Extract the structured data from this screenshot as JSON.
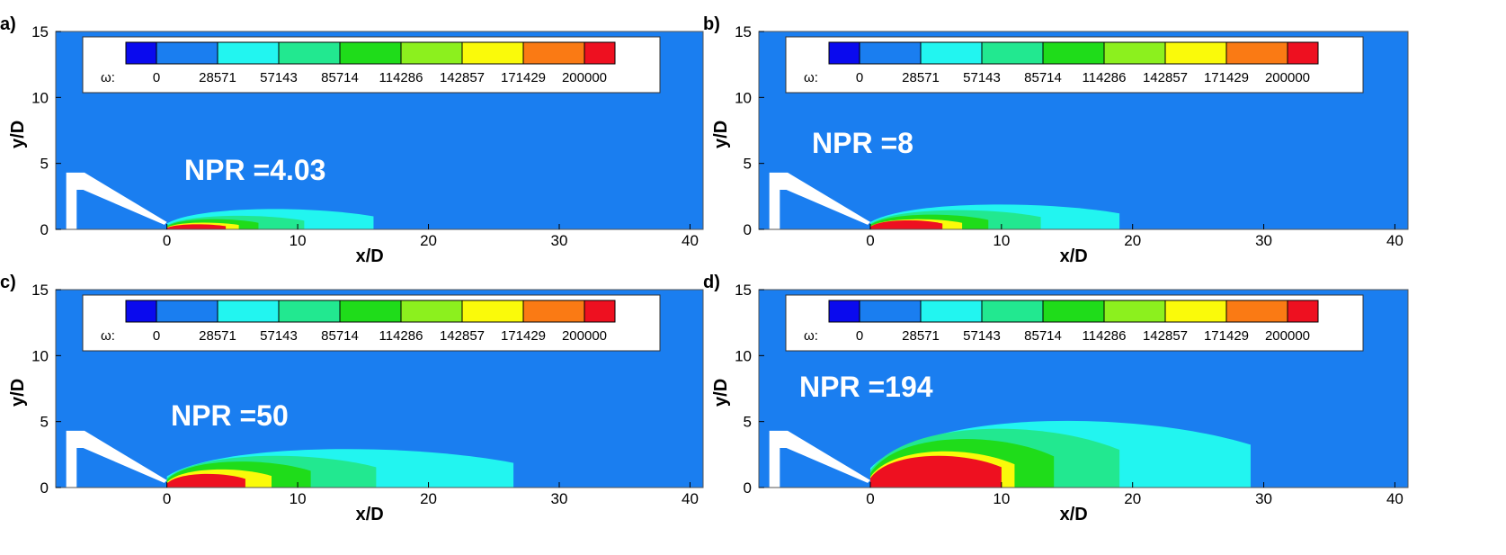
{
  "figure": {
    "colors": {
      "background": "#1a7ef0",
      "levels": [
        "#0a0aee",
        "#1a7ef0",
        "#22f5f0",
        "#22e890",
        "#1fdc1a",
        "#8cf01e",
        "#fafa0a",
        "#fa7a14",
        "#ee1020"
      ]
    },
    "legend": {
      "symbol": "ω:",
      "levels": [
        "0",
        "28571",
        "57143",
        "85714",
        "114286",
        "142857",
        "171429",
        "200000"
      ]
    },
    "x_axis": {
      "label": "x/D",
      "ticks": [
        "0",
        "10",
        "20",
        "30",
        "40"
      ],
      "range": [
        -8.5,
        41
      ]
    },
    "y_axis": {
      "label": "y/D",
      "ticks": [
        "0",
        "5",
        "10",
        "15"
      ],
      "range": [
        0,
        15
      ]
    },
    "panels": [
      {
        "id": "a",
        "label": "a)",
        "npr": "NPR =4.03",
        "plume": [
          {
            "level": 2,
            "len": 15.8,
            "h": 1.8
          },
          {
            "level": 3,
            "len": 10.5,
            "h": 1.2
          },
          {
            "level": 4,
            "len": 7,
            "h": 0.9
          },
          {
            "level": 6,
            "len": 5.5,
            "h": 0.6
          },
          {
            "level": 8,
            "len": 4.5,
            "h": 0.45
          }
        ]
      },
      {
        "id": "b",
        "label": "b)",
        "npr": "NPR =8",
        "plume": [
          {
            "level": 2,
            "len": 19,
            "h": 2.2
          },
          {
            "level": 3,
            "len": 13,
            "h": 1.7
          },
          {
            "level": 4,
            "len": 9,
            "h": 1.3
          },
          {
            "level": 6,
            "len": 7,
            "h": 0.9
          },
          {
            "level": 8,
            "len": 5.5,
            "h": 0.8
          }
        ]
      },
      {
        "id": "c",
        "label": "c)",
        "npr": "NPR =50",
        "plume": [
          {
            "level": 2,
            "len": 26.5,
            "h": 3.4
          },
          {
            "level": 3,
            "len": 16,
            "h": 2.8
          },
          {
            "level": 4,
            "len": 11,
            "h": 2.3
          },
          {
            "level": 6,
            "len": 8,
            "h": 1.6
          },
          {
            "level": 8,
            "len": 6,
            "h": 1.2
          }
        ]
      },
      {
        "id": "d",
        "label": "d)",
        "npr": "NPR =194",
        "plume": [
          {
            "level": 2,
            "len": 29,
            "h": 5.9
          },
          {
            "level": 3,
            "len": 19,
            "h": 5.2
          },
          {
            "level": 4,
            "len": 14,
            "h": 4.3
          },
          {
            "level": 6,
            "len": 11,
            "h": 3.2
          },
          {
            "level": 8,
            "len": 10,
            "h": 2.8
          }
        ]
      }
    ]
  }
}
